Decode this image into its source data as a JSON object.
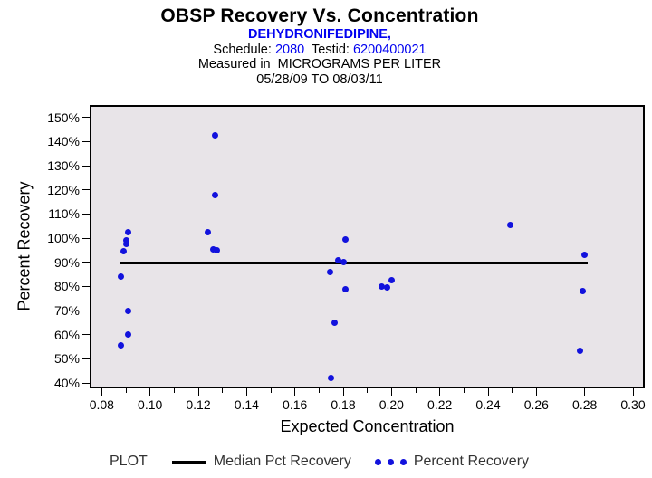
{
  "header": {
    "title": "OBSP Recovery Vs. Concentration",
    "compound": "DEHYDRONIFEDIPINE,",
    "schedule_label": "Schedule: ",
    "schedule_value": "2080",
    "testid_label": "  Testid: ",
    "testid_value": "6200400021",
    "measured_line": "Measured in  MICROGRAMS PER LITER",
    "date_range": "05/28/09 TO 08/03/11"
  },
  "colors": {
    "accent_blue": "#0101f0",
    "point_blue": "#1212dd",
    "plot_background": "#e8e4e8",
    "axis": "#000000"
  },
  "chart_data": {
    "type": "scatter",
    "title": "OBSP Recovery Vs. Concentration",
    "xlabel": "Expected Concentration",
    "ylabel": "Percent Recovery",
    "xlim": [
      0.08,
      0.3
    ],
    "ylim": [
      40,
      150
    ],
    "grid": false,
    "x_major_ticks": [
      0.08,
      0.1,
      0.12,
      0.14,
      0.16,
      0.18,
      0.2,
      0.22,
      0.24,
      0.26,
      0.28,
      0.3
    ],
    "x_tick_labels": [
      "0.08",
      "0.10",
      "0.12",
      "0.14",
      "0.16",
      "0.18",
      "0.20",
      "0.22",
      "0.24",
      "0.26",
      "0.28",
      "0.30"
    ],
    "x_minor_ticks": [
      0.09,
      0.11,
      0.13,
      0.15,
      0.17,
      0.19,
      0.21,
      0.23,
      0.25,
      0.27,
      0.29
    ],
    "y_major_ticks": [
      40,
      50,
      60,
      70,
      80,
      90,
      100,
      110,
      120,
      130,
      140,
      150
    ],
    "y_tick_labels": [
      "40%",
      "50%",
      "60%",
      "70%",
      "80%",
      "90%",
      "100%",
      "110%",
      "120%",
      "130%",
      "140%",
      "150%"
    ],
    "series": [
      {
        "name": "Percent Recovery",
        "type": "scatter",
        "points": [
          [
            0.091,
            102.5
          ],
          [
            0.09,
            99.0
          ],
          [
            0.09,
            97.5
          ],
          [
            0.089,
            94.5
          ],
          [
            0.088,
            84.0
          ],
          [
            0.091,
            70.0
          ],
          [
            0.091,
            60.0
          ],
          [
            0.088,
            55.5
          ],
          [
            0.127,
            142.5
          ],
          [
            0.127,
            118.0
          ],
          [
            0.124,
            102.5
          ],
          [
            0.126,
            95.5
          ],
          [
            0.1275,
            95.0
          ],
          [
            0.181,
            99.5
          ],
          [
            0.178,
            91.0
          ],
          [
            0.18,
            90.0
          ],
          [
            0.1745,
            86.0
          ],
          [
            0.181,
            79.0
          ],
          [
            0.1765,
            65.0
          ],
          [
            0.175,
            42.0
          ],
          [
            0.196,
            80.0
          ],
          [
            0.198,
            79.5
          ],
          [
            0.2,
            82.5
          ],
          [
            0.249,
            105.5
          ],
          [
            0.28,
            93.0
          ],
          [
            0.279,
            78.0
          ],
          [
            0.278,
            53.5
          ]
        ]
      },
      {
        "name": "Median Pct Recovery",
        "type": "line",
        "y": 89.8,
        "x_start": 0.0876,
        "x_end": 0.2813
      }
    ],
    "legend": {
      "position": "bottom",
      "title": "PLOT",
      "entries": [
        {
          "label": "Median Pct Recovery",
          "swatch": "line"
        },
        {
          "label": "Percent Recovery",
          "swatch": "dots"
        }
      ]
    }
  }
}
